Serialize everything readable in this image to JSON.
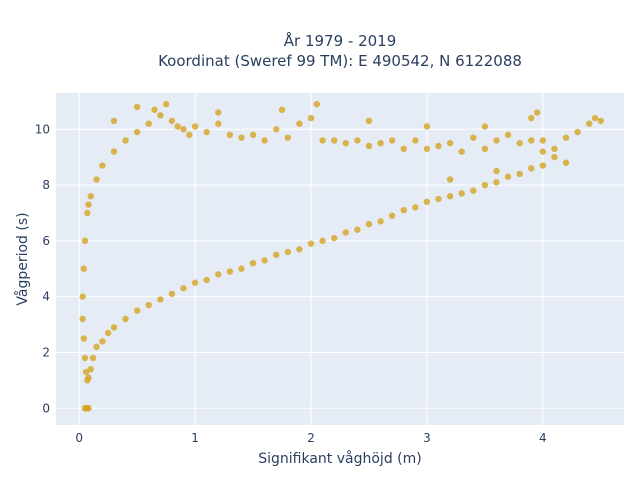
{
  "chart_data": {
    "type": "scatter",
    "title_line1": "År 1979 - 2019",
    "title_line2": "Koordinat (Sweref 99 TM): E 490542, N 6122088",
    "xlabel": "Signifikant våghöjd (m)",
    "ylabel": "Vågperiod (s)",
    "xlim": [
      -0.2,
      4.7
    ],
    "ylim": [
      -0.6,
      11.3
    ],
    "xticks": [
      0,
      1,
      2,
      3,
      4
    ],
    "yticks": [
      0,
      2,
      4,
      6,
      8,
      10
    ],
    "grid": true,
    "marker_color": "#D4A420",
    "plot_background": "#E5ECF6",
    "gridline_color": "#ffffff",
    "series": [
      {
        "points": [
          [
            0.05,
            0.0
          ],
          [
            0.06,
            0.0
          ],
          [
            0.07,
            0.0
          ],
          [
            0.08,
            0.0
          ],
          [
            0.07,
            1.0
          ],
          [
            0.08,
            1.1
          ],
          [
            0.06,
            1.3
          ],
          [
            0.05,
            1.8
          ],
          [
            0.04,
            2.5
          ],
          [
            0.03,
            3.2
          ],
          [
            0.03,
            4.0
          ],
          [
            0.04,
            5.0
          ],
          [
            0.05,
            6.0
          ],
          [
            0.07,
            7.0
          ],
          [
            0.08,
            7.3
          ],
          [
            0.1,
            1.4
          ],
          [
            0.12,
            1.8
          ],
          [
            0.15,
            2.2
          ],
          [
            0.2,
            2.4
          ],
          [
            0.25,
            2.7
          ],
          [
            0.3,
            2.9
          ],
          [
            0.4,
            3.2
          ],
          [
            0.5,
            3.5
          ],
          [
            0.6,
            3.7
          ],
          [
            0.7,
            3.9
          ],
          [
            0.8,
            4.1
          ],
          [
            0.9,
            4.3
          ],
          [
            1.0,
            4.5
          ],
          [
            1.1,
            4.6
          ],
          [
            1.2,
            4.8
          ],
          [
            1.3,
            4.9
          ],
          [
            1.4,
            5.0
          ],
          [
            1.5,
            5.2
          ],
          [
            1.6,
            5.3
          ],
          [
            1.7,
            5.5
          ],
          [
            1.8,
            5.6
          ],
          [
            1.9,
            5.7
          ],
          [
            2.0,
            5.9
          ],
          [
            2.1,
            6.0
          ],
          [
            2.2,
            6.1
          ],
          [
            2.3,
            6.3
          ],
          [
            2.4,
            6.4
          ],
          [
            2.5,
            6.6
          ],
          [
            2.6,
            6.7
          ],
          [
            2.7,
            6.9
          ],
          [
            2.8,
            7.1
          ],
          [
            2.9,
            7.2
          ],
          [
            3.0,
            7.4
          ],
          [
            3.1,
            7.5
          ],
          [
            3.2,
            7.6
          ],
          [
            3.3,
            7.7
          ],
          [
            3.4,
            7.8
          ],
          [
            3.5,
            8.0
          ],
          [
            3.6,
            8.1
          ],
          [
            3.7,
            8.3
          ],
          [
            3.8,
            8.4
          ],
          [
            3.9,
            8.6
          ],
          [
            4.0,
            8.7
          ],
          [
            4.1,
            9.0
          ],
          [
            0.1,
            7.6
          ],
          [
            0.15,
            8.2
          ],
          [
            0.2,
            8.7
          ],
          [
            0.3,
            9.2
          ],
          [
            0.4,
            9.6
          ],
          [
            0.5,
            9.9
          ],
          [
            0.6,
            10.2
          ],
          [
            0.7,
            10.5
          ],
          [
            0.75,
            10.9
          ],
          [
            0.65,
            10.7
          ],
          [
            0.8,
            10.3
          ],
          [
            0.9,
            10.0
          ],
          [
            1.0,
            10.1
          ],
          [
            1.1,
            9.9
          ],
          [
            1.2,
            10.2
          ],
          [
            1.3,
            9.8
          ],
          [
            1.4,
            9.7
          ],
          [
            1.5,
            9.8
          ],
          [
            1.6,
            9.6
          ],
          [
            1.7,
            10.0
          ],
          [
            1.8,
            9.7
          ],
          [
            1.9,
            10.2
          ],
          [
            2.0,
            10.4
          ],
          [
            2.05,
            10.9
          ],
          [
            2.1,
            9.6
          ],
          [
            2.2,
            9.6
          ],
          [
            2.3,
            9.5
          ],
          [
            2.4,
            9.6
          ],
          [
            2.5,
            9.4
          ],
          [
            2.6,
            9.5
          ],
          [
            2.7,
            9.6
          ],
          [
            2.8,
            9.3
          ],
          [
            2.9,
            9.6
          ],
          [
            3.0,
            9.3
          ],
          [
            3.1,
            9.4
          ],
          [
            3.2,
            9.5
          ],
          [
            3.3,
            9.2
          ],
          [
            3.4,
            9.7
          ],
          [
            3.5,
            9.3
          ],
          [
            3.6,
            9.6
          ],
          [
            3.7,
            9.8
          ],
          [
            3.8,
            9.5
          ],
          [
            3.9,
            9.6
          ],
          [
            4.0,
            9.6
          ],
          [
            4.1,
            9.3
          ],
          [
            4.2,
            9.7
          ],
          [
            4.3,
            9.9
          ],
          [
            4.4,
            10.2
          ],
          [
            4.45,
            10.4
          ],
          [
            4.5,
            10.3
          ],
          [
            3.95,
            10.6
          ],
          [
            3.9,
            10.4
          ],
          [
            3.5,
            10.1
          ],
          [
            3.0,
            10.1
          ],
          [
            2.5,
            10.3
          ],
          [
            1.75,
            10.7
          ],
          [
            1.2,
            10.6
          ],
          [
            0.3,
            10.3
          ],
          [
            0.5,
            10.8
          ],
          [
            0.85,
            10.1
          ],
          [
            0.95,
            9.8
          ],
          [
            4.2,
            8.8
          ],
          [
            4.0,
            9.2
          ],
          [
            3.6,
            8.5
          ],
          [
            3.2,
            8.2
          ]
        ]
      }
    ]
  }
}
